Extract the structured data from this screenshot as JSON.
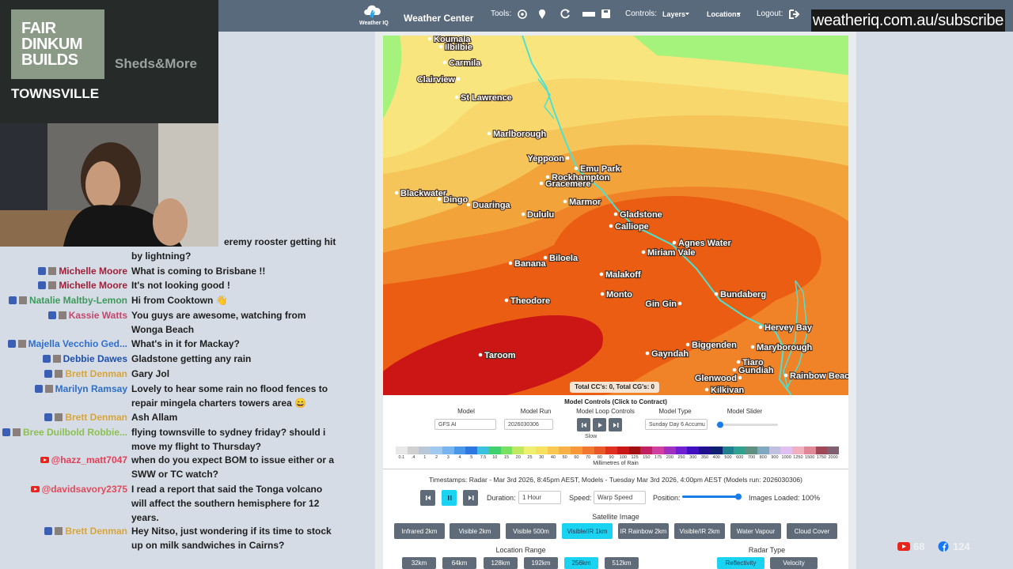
{
  "sponsor": {
    "brand": [
      "FAIR",
      "DINKUM",
      "BUILDS"
    ],
    "tagline": "Sheds&More",
    "city": "TOWNSVILLE"
  },
  "chat": [
    {
      "platform": "facebook",
      "message": [
        "eremy rooster getting hit",
        "by lightning?"
      ]
    },
    {
      "platform": "facebook",
      "name": "Michelle Moore",
      "name_color": "#a0203a",
      "message": [
        "What is coming to Brisbane !!"
      ]
    },
    {
      "platform": "facebook",
      "name": "Michelle Moore",
      "name_color": "#a0203a",
      "message": [
        "It's not looking good !"
      ]
    },
    {
      "platform": "facebook",
      "name": "Natalie Maltby-Lemon",
      "name_color": "#3c9a5c",
      "message": [
        "Hi from Cooktown 👋"
      ]
    },
    {
      "platform": "facebook",
      "name": "Kassie Watts",
      "name_color": "#c4476c",
      "message": [
        "You guys are awesome, watching from",
        "Wonga Beach"
      ]
    },
    {
      "platform": "facebook",
      "name": "Majella Vecchio Ged...",
      "name_color": "#2d6fd0",
      "message": [
        "What's in it for Mackay?"
      ]
    },
    {
      "platform": "facebook",
      "name": "Debbie Dawes",
      "name_color": "#1d4fb0",
      "message": [
        "Gladstone getting any rain"
      ]
    },
    {
      "platform": "facebook",
      "name": "Brett Denman",
      "name_color": "#d9a53a",
      "message": [
        "Gary Jol"
      ]
    },
    {
      "platform": "facebook",
      "name": "Marilyn Ramsay",
      "name_color": "#2e6ec8",
      "message": [
        "Lovely to hear some rain no flood fences to",
        "repair mingela charters towers area 😄"
      ]
    },
    {
      "platform": "facebook",
      "name": "Brett Denman",
      "name_color": "#d9a53a",
      "message": [
        "Ash Allam"
      ]
    },
    {
      "platform": "facebook",
      "name": "Bree Duilbold Robbie...",
      "name_color": "#8cc050",
      "message": [
        "flying townsville to sydney friday? should i",
        "move my flight to Thursday?"
      ]
    },
    {
      "platform": "youtube",
      "name": "@hazz_matt7047",
      "name_color": "#e0405a",
      "message": [
        "when do you expect BOM to issue either or a",
        "SWW or TC watch?"
      ]
    },
    {
      "platform": "youtube",
      "name": "@davidsavory2375",
      "name_color": "#e04a5a",
      "message": [
        "I read a report that said the Tonga volcano",
        "will affect the southern hemisphere for 12",
        "years."
      ]
    },
    {
      "platform": "facebook",
      "name": "Brett Denman",
      "name_color": "#d9a53a",
      "message": [
        "Hey Nitso, just wondering if its time to stock",
        "up on milk sandwiches in Cairns?"
      ]
    }
  ],
  "nav": {
    "brand": "Weather IQ",
    "title": "Weather Center",
    "tools": "Tools:",
    "controls": "Controls:",
    "layers": "Layers",
    "locations": "Locations",
    "logout": "Logout:"
  },
  "banner": "weatheriq.com.au/subscribe",
  "map": {
    "places": [
      "Koumala",
      "Ilbilbie",
      "Carmila",
      "Clairview",
      "St Lawrence",
      "Marlborough",
      "Yeppoon",
      "Emu Park",
      "Rockhampton",
      "Gracemere",
      "Blackwater",
      "Dingo",
      "Duaringa",
      "Dululu",
      "Marmor",
      "Gladstone",
      "Calliope",
      "Agnes Water",
      "Miriam Vale",
      "Banana",
      "Biloela",
      "Malakoff",
      "Monto",
      "Theodore",
      "Gin Gin",
      "Bundaberg",
      "Hervey Bay",
      "Biggenden",
      "Maryborough",
      "Taroom",
      "Gayndah",
      "Tiaro",
      "Gundiah",
      "Glenwood",
      "Rainbow Beach",
      "Kilkivan"
    ],
    "counter": "Total CC's: 0, Total CG's: 0"
  },
  "model_controls": {
    "title": "Model Controls (Click to Contract)",
    "labels": [
      "Model",
      "Model Run",
      "Model Loop Controls",
      "Model Type",
      "Model Slider"
    ],
    "model": "GFS AI",
    "run": "2026030306",
    "type": "Sunday Day 6 Accumu",
    "speed": "Slow"
  },
  "legend": {
    "labels": [
      "0.1",
      ".4",
      "1",
      "2",
      "3",
      "4",
      "5",
      "7.5",
      "10",
      "15",
      "20",
      "25",
      "30",
      "40",
      "50",
      "60",
      "70",
      "80",
      "90",
      "100",
      "125",
      "150",
      "175",
      "200",
      "250",
      "300",
      "350",
      "400",
      "500",
      "600",
      "700",
      "800",
      "900",
      "1000",
      "1250",
      "1500",
      "1750",
      "2000"
    ],
    "colors": [
      "#e8e8e8",
      "#d0d0d0",
      "#b8c8d8",
      "#a0c8f0",
      "#78b4f0",
      "#4a96e8",
      "#2c78e0",
      "#3cc0e0",
      "#40d070",
      "#78e060",
      "#c0e860",
      "#f0f070",
      "#f8e060",
      "#f8c850",
      "#f8b048",
      "#f89838",
      "#f07830",
      "#e85828",
      "#e03020",
      "#c81818",
      "#a01010",
      "#c02060",
      "#d040a0",
      "#a030c0",
      "#7020d0",
      "#4010c0",
      "#201090",
      "#102070",
      "#208090",
      "#30a090",
      "#609080",
      "#80a8c0",
      "#c0c0e0",
      "#e0c0f0",
      "#f0b0c0",
      "#e08898",
      "#a04858",
      "#806070"
    ],
    "unit": "Millimetres of Rain"
  },
  "timestamps": "Timestamps: Radar - Mar 3rd 2026, 8:45pm AEST,  Models - Tuesday Mar 3rd 2026, 4:00pm AEST (Models run: 2026030306)",
  "playback": {
    "duration_label": "Duration:",
    "duration": "1 Hour",
    "speed_label": "Speed:",
    "speed": "Warp Speed",
    "position_label": "Position:",
    "loaded": "Images Loaded: 100%"
  },
  "satellite": {
    "title": "Satellite Image",
    "buttons": [
      "Infrared 2km",
      "Visible 2km",
      "Visible 500m",
      "Visible/IR 1km",
      "IR Rainbow 2km",
      "Visible/IR 2km",
      "Water Vapour",
      "Cloud Cover"
    ],
    "active": 3
  },
  "range": {
    "title": "Location Range",
    "buttons": [
      "32km",
      "64km",
      "128km",
      "192km",
      "256km",
      "512km"
    ],
    "active": 4
  },
  "radar": {
    "title": "Radar Type",
    "buttons": [
      "Reflectivity",
      "Velocity"
    ],
    "active": 0
  },
  "stats": {
    "youtube": 68,
    "facebook": 124
  }
}
